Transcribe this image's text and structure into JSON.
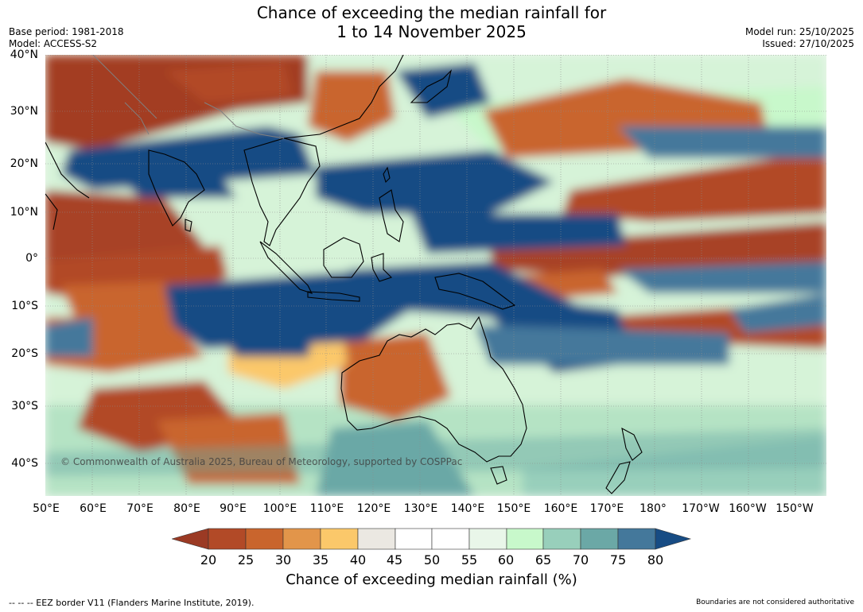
{
  "title": {
    "line1": "Chance of exceeding the median rainfall for",
    "line2": "1 to 14 November 2025"
  },
  "meta_left": {
    "base_period": "Base period: 1981-2018",
    "model": "Model: ACCESS-S2"
  },
  "meta_right": {
    "model_run": "Model run: 25/10/2025",
    "issued": "Issued: 27/10/2025"
  },
  "latitude_labels": [
    "40°N",
    "30°N",
    "20°N",
    "10°N",
    "0°",
    "10°S",
    "20°S",
    "30°S",
    "40°S"
  ],
  "longitude_labels": [
    "50°E",
    "60°E",
    "70°E",
    "80°E",
    "90°E",
    "100°E",
    "110°E",
    "120°E",
    "130°E",
    "140°E",
    "150°E",
    "160°E",
    "170°E",
    "180°",
    "170°W",
    "160°W",
    "150°W"
  ],
  "copyright": "© Commonwealth of Australia 2025, Bureau of Meteorology, supported by COSPPac",
  "legend": {
    "title": "Chance of exceeding median rainfall (%)",
    "values": [
      "20",
      "25",
      "30",
      "35",
      "40",
      "45",
      "50",
      "55",
      "60",
      "65",
      "70",
      "75",
      "80"
    ],
    "colors": [
      "#9b3a24",
      "#b24a27",
      "#c9652d",
      "#e2954a",
      "#fbc86a",
      "#ebe8e2",
      "#ffffff",
      "#ffffff",
      "#e9f6e9",
      "#c8f8cb",
      "#98cfbb",
      "#6ba8a6",
      "#44789b",
      "#174c84"
    ]
  },
  "footer": {
    "eez": "--  --  -- EEZ border V11 (Flanders Marine Institute, 2019).",
    "disclaimer": "Boundaries are not considered authoritative"
  }
}
